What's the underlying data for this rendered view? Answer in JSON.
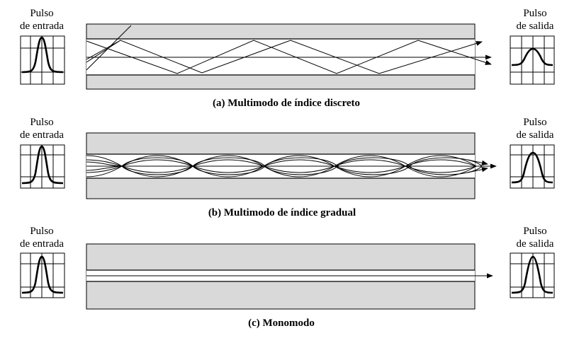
{
  "colors": {
    "cladding": "#d9d9d9",
    "core": "#ffffff",
    "line": "#000000"
  },
  "panels": [
    {
      "id": "a",
      "input_label": [
        "Pulso",
        "de entrada"
      ],
      "output_label": [
        "Pulso",
        "de salida"
      ],
      "caption": "(a) Multimodo de índice discreto"
    },
    {
      "id": "b",
      "input_label": [
        "Pulso",
        "de entrada"
      ],
      "output_label": [
        "Pulso",
        "de salida"
      ],
      "caption": "(b) Multimodo de índice gradual"
    },
    {
      "id": "c",
      "input_label": [
        "Pulso",
        "de entrada"
      ],
      "output_label": [
        "Pulso",
        "de salida"
      ],
      "caption": "(c) Monomodo"
    }
  ]
}
